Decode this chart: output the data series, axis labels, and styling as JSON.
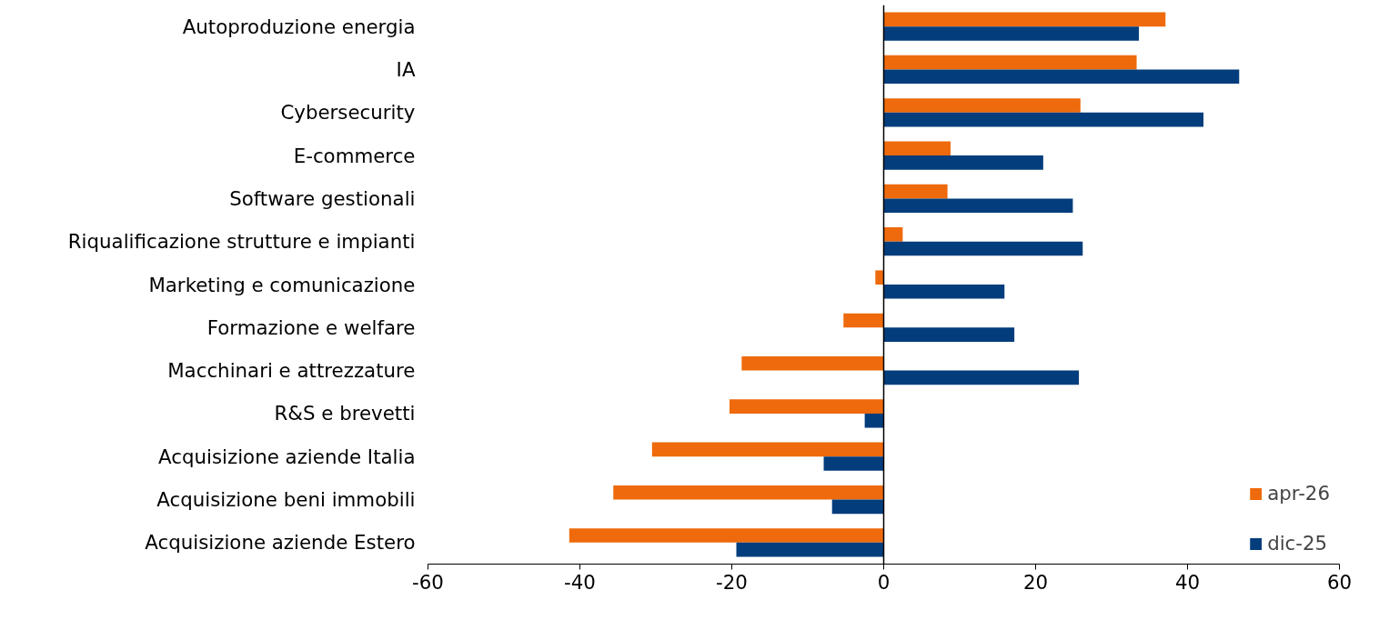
{
  "chart_data": {
    "type": "bar",
    "orientation": "horizontal",
    "categories": [
      "Autoproduzione energia",
      "IA",
      "Cybersecurity",
      "E-commerce",
      "Software gestionali",
      "Riqualificazione strutture e impianti",
      "Marketing e comunicazione",
      "Formazione e welfare",
      "Macchinari e attrezzature",
      "R&S e brevetti",
      "Acquisizione aziende Italia",
      "Acquisizione beni immobili",
      "Acquisizione aziende Estero"
    ],
    "series": [
      {
        "name": "apr-26",
        "color": "#ee6a0c",
        "values": [
          37.1,
          33.3,
          25.9,
          8.8,
          8.4,
          2.5,
          -1.1,
          -5.3,
          -18.7,
          -20.3,
          -30.5,
          -35.6,
          -41.4
        ]
      },
      {
        "name": "dic-25",
        "color": "#033d7c",
        "values": [
          33.6,
          46.8,
          42.1,
          21.0,
          24.9,
          26.2,
          15.9,
          17.2,
          25.7,
          -2.5,
          -7.9,
          -6.8,
          -19.4
        ]
      }
    ],
    "xlim": [
      -60,
      60
    ],
    "xticks": [
      -60,
      -40,
      -20,
      0,
      20,
      40,
      60
    ],
    "ref_lines": [
      {
        "axis": "x",
        "value": 0,
        "color": "#000000"
      }
    ],
    "grid": false,
    "legend": "bottom right"
  }
}
